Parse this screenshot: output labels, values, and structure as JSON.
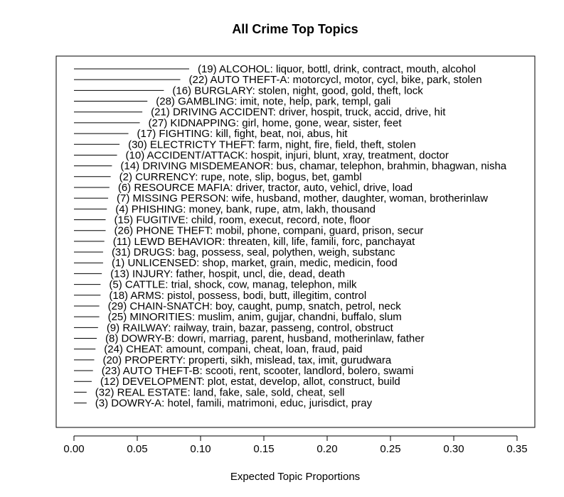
{
  "chart_data": {
    "type": "bar",
    "style": "horizontal-line-segments",
    "title": "All Crime Top Topics",
    "xlabel": "Expected Topic Proportions",
    "ylabel": "",
    "xlim": [
      0,
      0.35
    ],
    "xticks": [
      "0.00",
      "0.05",
      "0.10",
      "0.15",
      "0.20",
      "0.25",
      "0.30",
      "0.35"
    ],
    "xtick_values": [
      0,
      0.05,
      0.1,
      0.15,
      0.2,
      0.25,
      0.3,
      0.35
    ],
    "grid": false,
    "topics": [
      {
        "label": "(19) ALCOHOL: liquor, bottl, drink, contract, mouth, alcohol",
        "value": 0.091
      },
      {
        "label": "(22) AUTO THEFT-A: motorcycl, motor, cycl, bike, park, stolen",
        "value": 0.084
      },
      {
        "label": "(16) BURGLARY: stolen, night, good, gold, theft, lock",
        "value": 0.071
      },
      {
        "label": "(28) GAMBLING: imit, note, help, park, templ, gali",
        "value": 0.058
      },
      {
        "label": "(21) DRIVING ACCIDENT: driver, hospit, truck, accid, drive, hit",
        "value": 0.054
      },
      {
        "label": "(27) KIDNAPPING: girl, home, gone, wear, sister, feet",
        "value": 0.052
      },
      {
        "label": "(17) FIGHTING: kill, fight, beat, noi, abus, hit",
        "value": 0.043
      },
      {
        "label": "(30) ELECTRICTY THEFT: farm, night, fire, field, theft, stolen",
        "value": 0.036
      },
      {
        "label": "(10) ACCIDENT/ATTACK: hospit, injuri, blunt, xray, treatment, doctor",
        "value": 0.034
      },
      {
        "label": "(14) DRIVING MISDEMEANOR: bus, chamar, telephon, brahmin, bhagwan, nisha",
        "value": 0.03
      },
      {
        "label": "(2) CURRENCY: rupe, note, slip, bogus, bet, gambl",
        "value": 0.029
      },
      {
        "label": "(6) RESOURCE MAFIA: driver, tractor, auto, vehicl, drive, load",
        "value": 0.028
      },
      {
        "label": "(7) MISSING PERSON: wife, husband, mother, daughter, woman, brotherinlaw",
        "value": 0.027
      },
      {
        "label": "(4) PHISHING: money, bank, rupe, atm, lakh, thousand",
        "value": 0.026
      },
      {
        "label": "(15) FUGITIVE: child, room, execut, record, note, floor",
        "value": 0.025
      },
      {
        "label": "(26) PHONE THEFT: mobil, phone, compani, guard, prison, secur",
        "value": 0.025
      },
      {
        "label": "(11) LEWD BEHAVIOR: threaten, kill, life, famili, forc, panchayat",
        "value": 0.024
      },
      {
        "label": "(31) DRUGS: bag, possess, seal, polythen, weigh, substanc",
        "value": 0.023
      },
      {
        "label": "(1) UNLICENSED: shop, market, grain, medic, medicin, food",
        "value": 0.023
      },
      {
        "label": "(13) INJURY: father, hospit, uncl, die, dead, death",
        "value": 0.022
      },
      {
        "label": "(5) CATTLE: trial, shock, cow, manag, telephon, milk",
        "value": 0.021
      },
      {
        "label": "(18) ARMS: pistol, possess, bodi, butt, illegitim, control",
        "value": 0.021
      },
      {
        "label": "(29) CHAIN-SNATCH: boy, caught, pump, snatch, petrol, neck",
        "value": 0.02
      },
      {
        "label": "(25) MINORITIES: muslim, anim, gujjar, chandni, buffalo, slum",
        "value": 0.02
      },
      {
        "label": "(9) RAILWAY: railway, train, bazar, passeng, control, obstruct",
        "value": 0.019
      },
      {
        "label": "(8) DOWRY-B: dowri, marriag, parent, husband, motherinlaw, father",
        "value": 0.018
      },
      {
        "label": "(24) CHEAT: amount, compani, cheat, loan, fraud, paid",
        "value": 0.017
      },
      {
        "label": "(20) PROPERTY: properti, sikh, mislead, tax, imit, gurudwara",
        "value": 0.016
      },
      {
        "label": "(23) AUTO THEFT-B: scooti, rent, scooter, landlord, bolero, swami",
        "value": 0.015
      },
      {
        "label": "(12) DEVELOPMENT: plot, estat, develop, allot, construct, build",
        "value": 0.014
      },
      {
        "label": "(32) REAL ESTATE: land, fake, sale, sold, cheat, sell",
        "value": 0.01
      },
      {
        "label": "(3) DOWRY-A: hotel, famili, matrimoni, educ, jurisdict, pray",
        "value": 0.01
      }
    ]
  }
}
